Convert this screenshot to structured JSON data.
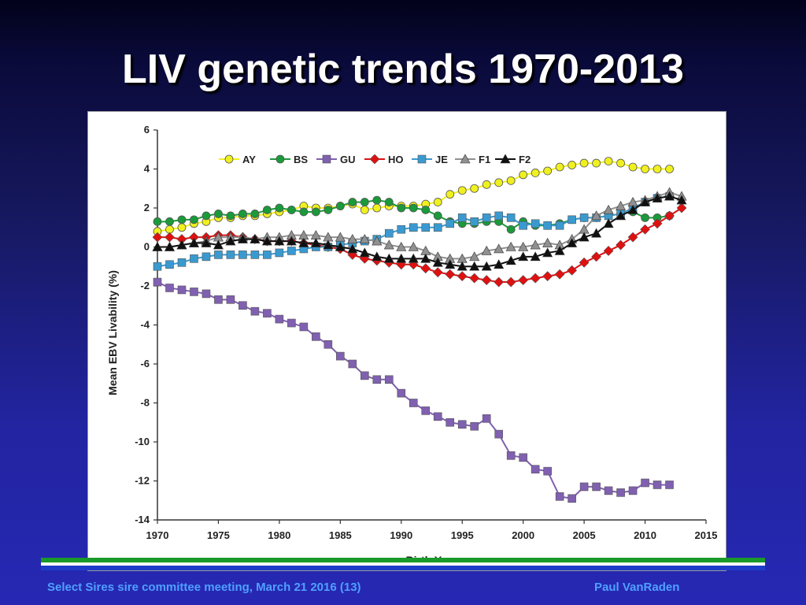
{
  "slide": {
    "title": "LIV genetic trends 1970-2013",
    "footer_left": "Select Sires sire committee meeting, March 21 2016 (13)",
    "footer_right": "Paul VanRaden"
  },
  "chart_data": {
    "type": "line",
    "title": "",
    "xlabel": "Birth Year",
    "ylabel": "Mean EBV Livability (%)",
    "xlim": [
      1970,
      2015
    ],
    "ylim": [
      -14,
      6
    ],
    "xticks": [
      1970,
      1975,
      1980,
      1985,
      1990,
      1995,
      2000,
      2005,
      2010,
      2015
    ],
    "yticks": [
      -14,
      -12,
      -10,
      -8,
      -6,
      -4,
      -2,
      0,
      2,
      4,
      6
    ],
    "grid": false,
    "legend": "top",
    "series": [
      {
        "name": "AY",
        "color": "#f0f020",
        "marker": "circle",
        "x_start": 1970,
        "values": [
          0.8,
          0.9,
          1.0,
          1.2,
          1.3,
          1.5,
          1.5,
          1.6,
          1.6,
          1.7,
          1.8,
          1.9,
          2.1,
          2.0,
          2.0,
          2.1,
          2.2,
          1.9,
          2.0,
          2.1,
          2.1,
          2.1,
          2.2,
          2.3,
          2.7,
          2.9,
          3.0,
          3.2,
          3.3,
          3.4,
          3.7,
          3.8,
          3.9,
          4.1,
          4.2,
          4.3,
          4.3,
          4.4,
          4.3,
          4.1,
          4.0,
          4.0,
          4.0
        ]
      },
      {
        "name": "BS",
        "color": "#1a9a3a",
        "marker": "circle",
        "x_start": 1970,
        "values": [
          1.3,
          1.3,
          1.4,
          1.4,
          1.6,
          1.7,
          1.6,
          1.7,
          1.7,
          1.9,
          2.0,
          1.9,
          1.8,
          1.8,
          1.9,
          2.1,
          2.3,
          2.3,
          2.4,
          2.3,
          2.0,
          2.0,
          1.9,
          1.6,
          1.3,
          1.2,
          1.2,
          1.3,
          1.3,
          0.9,
          1.3,
          1.1,
          1.1,
          1.2,
          1.4,
          1.5,
          1.5,
          1.6,
          1.7,
          1.8,
          1.5,
          1.5,
          1.6
        ]
      },
      {
        "name": "GU",
        "color": "#8060b0",
        "marker": "square",
        "x_start": 1970,
        "values": [
          -1.8,
          -2.1,
          -2.2,
          -2.3,
          -2.4,
          -2.7,
          -2.7,
          -3.0,
          -3.3,
          -3.4,
          -3.7,
          -3.9,
          -4.1,
          -4.6,
          -5.0,
          -5.6,
          -6.0,
          -6.6,
          -6.8,
          -6.8,
          -7.5,
          -8.0,
          -8.4,
          -8.7,
          -9.0,
          -9.1,
          -9.2,
          -8.8,
          -9.6,
          -10.7,
          -10.8,
          -11.4,
          -11.5,
          -12.8,
          -12.9,
          -12.3,
          -12.3,
          -12.5,
          -12.6,
          -12.5,
          -12.1,
          -12.2,
          -12.2
        ]
      },
      {
        "name": "HO",
        "color": "#e01010",
        "marker": "diamond",
        "x_start": 1970,
        "values": [
          0.5,
          0.5,
          0.4,
          0.5,
          0.5,
          0.6,
          0.6,
          0.5,
          0.4,
          0.3,
          0.3,
          0.3,
          0.2,
          0.1,
          0.0,
          -0.1,
          -0.4,
          -0.6,
          -0.7,
          -0.8,
          -0.9,
          -0.9,
          -1.1,
          -1.3,
          -1.4,
          -1.5,
          -1.6,
          -1.7,
          -1.8,
          -1.8,
          -1.7,
          -1.6,
          -1.5,
          -1.4,
          -1.2,
          -0.8,
          -0.5,
          -0.2,
          0.1,
          0.5,
          0.9,
          1.2,
          1.6,
          2.0
        ]
      },
      {
        "name": "JE",
        "color": "#3a9ad0",
        "marker": "square",
        "x_start": 1970,
        "values": [
          -1.0,
          -0.9,
          -0.8,
          -0.6,
          -0.5,
          -0.4,
          -0.4,
          -0.4,
          -0.4,
          -0.4,
          -0.3,
          -0.2,
          -0.1,
          0.0,
          0.0,
          0.1,
          0.2,
          0.3,
          0.4,
          0.7,
          0.9,
          1.0,
          1.0,
          1.0,
          1.2,
          1.5,
          1.3,
          1.5,
          1.6,
          1.5,
          1.1,
          1.2,
          1.1,
          1.1,
          1.4,
          1.5,
          1.5,
          1.6,
          1.7,
          2.0,
          2.3,
          2.5,
          2.6
        ]
      },
      {
        "name": "F1",
        "color": "#909090",
        "marker": "triangle",
        "x_start": 1970,
        "values": [
          0.0,
          0.0,
          0.1,
          0.2,
          0.3,
          0.5,
          0.5,
          0.5,
          0.4,
          0.5,
          0.5,
          0.6,
          0.6,
          0.6,
          0.5,
          0.5,
          0.4,
          0.4,
          0.3,
          0.1,
          0.0,
          0.0,
          -0.2,
          -0.5,
          -0.6,
          -0.6,
          -0.5,
          -0.2,
          -0.1,
          0.0,
          0.0,
          0.1,
          0.2,
          0.1,
          0.4,
          0.9,
          1.6,
          1.9,
          2.1,
          2.3,
          2.4,
          2.6,
          2.8,
          2.6
        ]
      },
      {
        "name": "F2",
        "color": "#101010",
        "marker": "triangle",
        "x_start": 1970,
        "values": [
          0.0,
          0.0,
          0.1,
          0.2,
          0.2,
          0.1,
          0.3,
          0.4,
          0.4,
          0.3,
          0.3,
          0.3,
          0.2,
          0.2,
          0.1,
          0.0,
          -0.1,
          -0.3,
          -0.5,
          -0.6,
          -0.6,
          -0.6,
          -0.6,
          -0.8,
          -0.9,
          -1.0,
          -1.0,
          -1.0,
          -0.9,
          -0.7,
          -0.5,
          -0.5,
          -0.3,
          -0.2,
          0.2,
          0.5,
          0.7,
          1.2,
          1.6,
          1.9,
          2.3,
          2.5,
          2.6,
          2.4
        ]
      }
    ]
  }
}
